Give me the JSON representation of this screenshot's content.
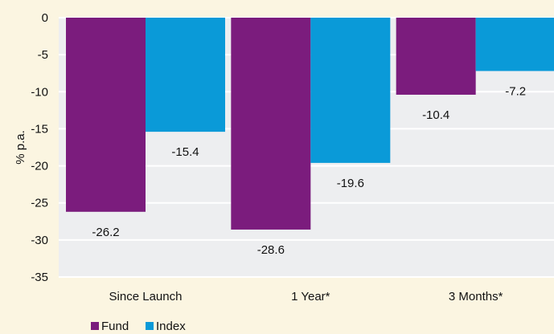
{
  "chart_data": {
    "type": "bar",
    "categories": [
      "Since Launch",
      "1 Year*",
      "3 Months*"
    ],
    "series": [
      {
        "name": "Fund",
        "values": [
          -26.2,
          -28.6,
          -10.4
        ],
        "color": "#7b1c7d"
      },
      {
        "name": "Index",
        "values": [
          -15.4,
          -19.6,
          -7.2
        ],
        "color": "#0a9ad8"
      }
    ],
    "ylabel": "% p.a.",
    "ylim": [
      -35,
      0
    ],
    "yticks": [
      0,
      -5,
      -10,
      -15,
      -20,
      -25,
      -30,
      -35
    ],
    "grid": true,
    "legend_position": "bottom-left"
  },
  "colors": {
    "background": "#fbf5e1",
    "plot_background": "#edeef0",
    "gridline": "#ffffff"
  }
}
